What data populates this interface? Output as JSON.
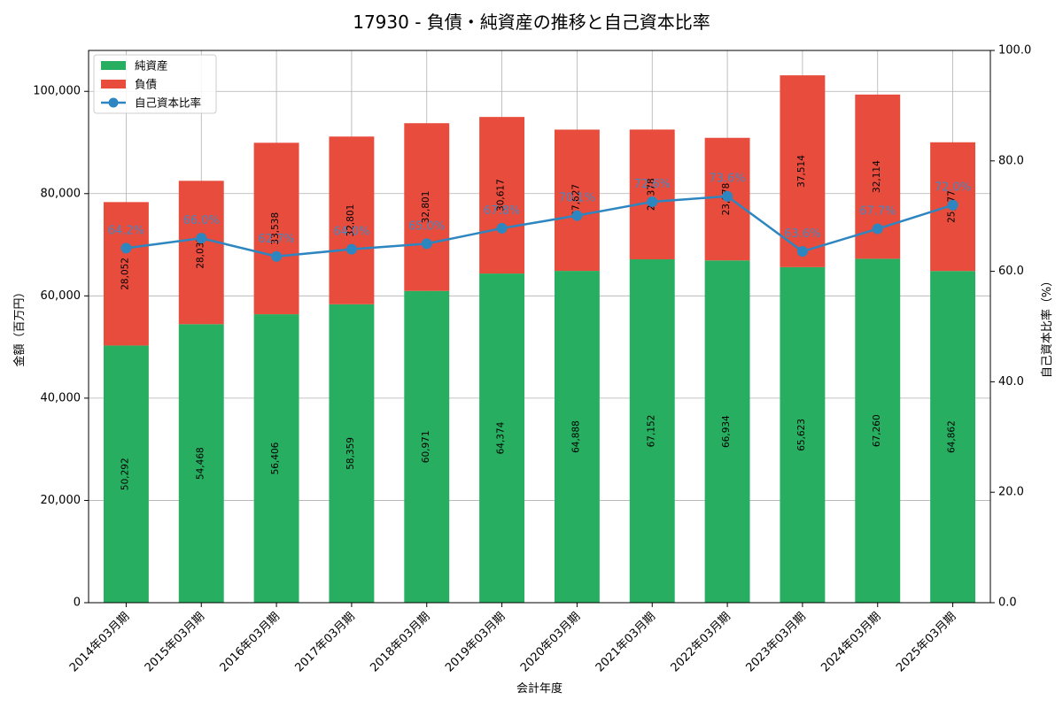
{
  "chart_data": {
    "type": "bar",
    "title": "17930 - 負債・純資産の推移と自己資本比率",
    "xlabel": "会計年度",
    "ylabel": "金額（百万円）",
    "y2label": "自己資本比率（%）",
    "categories": [
      "2014年03月期",
      "2015年03月期",
      "2016年03月期",
      "2017年03月期",
      "2018年03月期",
      "2019年03月期",
      "2020年03月期",
      "2021年03月期",
      "2022年03月期",
      "2023年03月期",
      "2024年03月期",
      "2025年03月期"
    ],
    "series": [
      {
        "name": "純資産",
        "kind": "stacked-bar",
        "color": "#27ae60",
        "values": [
          50292,
          54468,
          56406,
          58359,
          60971,
          64374,
          64888,
          67152,
          66934,
          65623,
          67260,
          64862
        ],
        "labels": [
          "50,292",
          "54,468",
          "56,406",
          "58,359",
          "60,971",
          "64,374",
          "64,888",
          "67,152",
          "66,934",
          "65,623",
          "67,260",
          "64,862"
        ]
      },
      {
        "name": "負債",
        "kind": "stacked-bar",
        "color": "#e74c3c",
        "values": [
          28052,
          28037,
          33538,
          32801,
          32801,
          30617,
          27627,
          25378,
          23978,
          37514,
          32114,
          25177
        ],
        "labels": [
          "28,052",
          "28,037",
          "33,538",
          "32,801",
          "32,801",
          "30,617",
          "27,627",
          "25,378",
          "23,978",
          "37,514",
          "32,114",
          "25,177"
        ]
      },
      {
        "name": "自己資本比率",
        "kind": "line",
        "axis": "right",
        "color": "#2e86c1",
        "values": [
          64.2,
          66.0,
          62.7,
          64.0,
          65.0,
          67.8,
          70.1,
          72.6,
          73.6,
          63.6,
          67.7,
          72.0
        ],
        "labels": [
          "64.2%",
          "66.0%",
          "62.7%",
          "64.0%",
          "65.0%",
          "67.8%",
          "70.1%",
          "72.6%",
          "73.6%",
          "63.6%",
          "67.7%",
          "72.0%"
        ]
      }
    ],
    "ylim": [
      0,
      108000
    ],
    "yticks": [
      0,
      20000,
      40000,
      60000,
      80000,
      100000
    ],
    "ytick_labels": [
      "0",
      "20,000",
      "40,000",
      "60,000",
      "80,000",
      "100,000"
    ],
    "y2lim": [
      0,
      100
    ],
    "y2ticks": [
      0,
      20,
      40,
      60,
      80,
      100
    ],
    "y2tick_labels": [
      "0.0",
      "20.0",
      "40.0",
      "60.0",
      "80.0",
      "100.0"
    ],
    "grid": true,
    "legend": "top-left"
  }
}
